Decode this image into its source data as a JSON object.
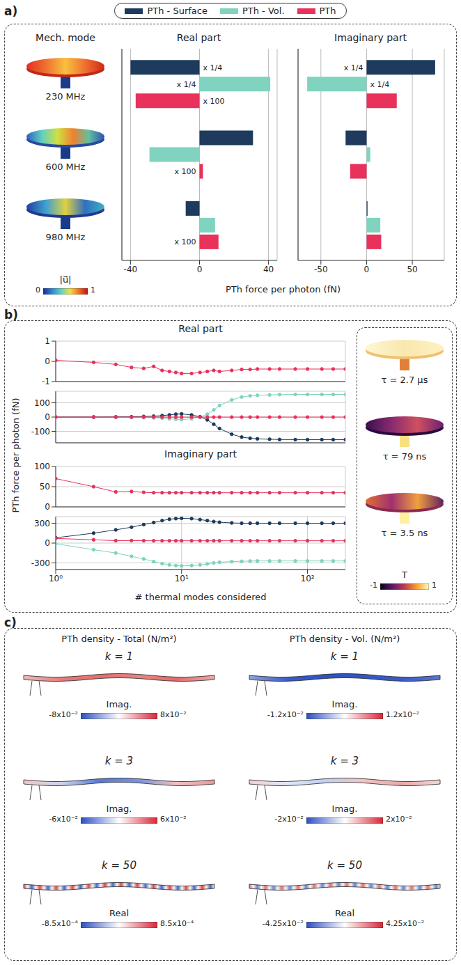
{
  "chart_data": [
    {
      "type": "bar",
      "title": "Real part",
      "orientation": "horizontal",
      "categories": [
        "230 MHz",
        "600 MHz",
        "980 MHz"
      ],
      "series": [
        {
          "name": "PTh - Surface",
          "color": "#1e3a5c",
          "values": [
            -40,
            31,
            -8
          ]
        },
        {
          "name": "PTh - Vol.",
          "color": "#7fd3bf",
          "values": [
            41,
            -29,
            9
          ]
        },
        {
          "name": "PTh",
          "color": "#e8315b",
          "values": [
            -37,
            2,
            11
          ]
        }
      ],
      "xlim": [
        -45,
        45
      ],
      "xticks": [
        -40,
        0,
        40
      ],
      "grid": true,
      "tick_labels": "x",
      "legend": "top",
      "annotations": [
        {
          "text": "x 1/4",
          "category": "230 MHz",
          "series": "PTh - Surface"
        },
        {
          "text": "x 1/4",
          "category": "230 MHz",
          "series": "PTh - Vol."
        },
        {
          "text": "x 100",
          "category": "230 MHz",
          "series": "PTh"
        },
        {
          "text": "x 100",
          "category": "600 MHz",
          "series": "PTh"
        },
        {
          "text": "x 100",
          "category": "980 MHz",
          "series": "PTh"
        }
      ]
    },
    {
      "type": "bar",
      "title": "Imaginary part",
      "orientation": "horizontal",
      "categories": [
        "230 MHz",
        "600 MHz",
        "980 MHz"
      ],
      "series": [
        {
          "name": "PTh - Surface",
          "color": "#1e3a5c",
          "values": [
            75,
            -23,
            1
          ]
        },
        {
          "name": "PTh - Vol.",
          "color": "#7fd3bf",
          "values": [
            -65,
            4,
            15
          ]
        },
        {
          "name": "PTh",
          "color": "#e8315b",
          "values": [
            33,
            -18,
            16
          ]
        }
      ],
      "xlim": [
        -75,
        85
      ],
      "xticks": [
        -50,
        0,
        50
      ],
      "grid": true,
      "tick_labels": "x",
      "annotations": [
        {
          "text": "x 1/4",
          "category": "230 MHz",
          "series": "PTh - Surface"
        },
        {
          "text": "x 1/4",
          "category": "230 MHz",
          "series": "PTh - Vol."
        }
      ]
    },
    {
      "type": "line",
      "title": "Real part",
      "x": [
        1,
        2,
        3,
        4,
        5,
        6,
        7,
        8,
        9,
        10,
        12,
        14,
        16,
        18,
        20,
        25,
        30,
        35,
        40,
        50,
        60,
        80,
        100,
        130,
        160,
        200
      ],
      "series": [
        {
          "name": "PTh",
          "color": "#e8315b",
          "values": [
            0.05,
            -0.05,
            -0.15,
            -0.3,
            -0.35,
            -0.25,
            -0.45,
            -0.5,
            -0.55,
            -0.6,
            -0.6,
            -0.55,
            -0.5,
            -0.45,
            -0.5,
            -0.45,
            -0.4,
            -0.4,
            -0.38,
            -0.38,
            -0.38,
            -0.38,
            -0.38,
            -0.38,
            -0.38,
            -0.38
          ]
        }
      ],
      "log": "x",
      "xlim": [
        1,
        200
      ],
      "xticks": [
        {
          "value": 1,
          "label": "10⁰"
        },
        {
          "value": 10,
          "label": "10¹"
        },
        {
          "value": 100,
          "label": "10²"
        }
      ],
      "ylim": [
        -1,
        1
      ],
      "yticks": [
        -1,
        0,
        1
      ],
      "grid": true,
      "tick_labels": "y",
      "marker": "circle"
    },
    {
      "type": "line",
      "x": [
        1,
        2,
        3,
        4,
        5,
        6,
        7,
        8,
        9,
        10,
        12,
        14,
        16,
        18,
        20,
        25,
        30,
        35,
        40,
        50,
        60,
        80,
        100,
        130,
        160,
        200
      ],
      "series": [
        {
          "name": "PTh - Vol.",
          "color": "#7fd3bf",
          "values": [
            0,
            0,
            -1,
            -2,
            -3,
            -5,
            -8,
            -12,
            -15,
            -18,
            -12,
            0,
            20,
            50,
            80,
            120,
            140,
            148,
            152,
            155,
            157,
            158,
            158,
            158,
            158,
            158
          ]
        },
        {
          "name": "PTh - Surface",
          "color": "#1e3a5c",
          "values": [
            0,
            0,
            1,
            2,
            4,
            6,
            10,
            15,
            20,
            22,
            15,
            2,
            -20,
            -50,
            -80,
            -120,
            -140,
            -148,
            -152,
            -155,
            -157,
            -158,
            -158,
            -158,
            -158,
            -158
          ]
        },
        {
          "name": "PTh",
          "color": "#e8315b",
          "values": [
            0.05,
            -0.05,
            -0.15,
            -0.3,
            -0.35,
            -0.25,
            -0.45,
            -0.5,
            -0.55,
            -0.6,
            -0.6,
            -0.55,
            -0.5,
            -0.45,
            -0.5,
            -0.45,
            -0.4,
            -0.4,
            -0.38,
            -0.38,
            -0.38,
            -0.38,
            -0.38,
            -0.38,
            -0.38,
            -0.38
          ]
        }
      ],
      "log": "x",
      "xlim": [
        1,
        200
      ],
      "xticks": [
        {
          "value": 1,
          "label": "10⁰"
        },
        {
          "value": 10,
          "label": "10¹"
        },
        {
          "value": 100,
          "label": "10²"
        }
      ],
      "ylim": [
        -180,
        180
      ],
      "yticks": [
        -100,
        0,
        100
      ],
      "grid": true,
      "tick_labels": "y",
      "marker": "circle"
    },
    {
      "type": "line",
      "title": "Imaginary part",
      "x": [
        1,
        2,
        3,
        4,
        5,
        6,
        7,
        8,
        9,
        10,
        12,
        14,
        16,
        18,
        20,
        25,
        30,
        35,
        40,
        50,
        60,
        80,
        100,
        130,
        160,
        200
      ],
      "series": [
        {
          "name": "PTh",
          "color": "#e8315b",
          "values": [
            70,
            50,
            37,
            38,
            36,
            35,
            35,
            35,
            35,
            35,
            35,
            35,
            35,
            35,
            35,
            35,
            35,
            35,
            35,
            35,
            35,
            35,
            35,
            35,
            35,
            35
          ]
        }
      ],
      "log": "x",
      "xlim": [
        1,
        200
      ],
      "xticks": [
        {
          "value": 1,
          "label": "10⁰"
        },
        {
          "value": 10,
          "label": "10¹"
        },
        {
          "value": 100,
          "label": "10²"
        }
      ],
      "ylim": [
        0,
        100
      ],
      "yticks": [
        0,
        50,
        100
      ],
      "grid": true,
      "tick_labels": "y",
      "marker": "circle"
    },
    {
      "type": "line",
      "x": [
        1,
        2,
        3,
        4,
        5,
        6,
        7,
        8,
        9,
        10,
        12,
        14,
        16,
        18,
        20,
        25,
        30,
        35,
        40,
        50,
        60,
        80,
        100,
        130,
        160,
        200
      ],
      "x_label": "# thermal modes considered",
      "series": [
        {
          "name": "PTh - Vol.",
          "color": "#7fd3bf",
          "values": [
            -10,
            -100,
            -150,
            -200,
            -240,
            -280,
            -310,
            -330,
            -340,
            -345,
            -340,
            -330,
            -315,
            -300,
            -290,
            -280,
            -275,
            -272,
            -270,
            -270,
            -270,
            -270,
            -270,
            -270,
            -270,
            -270
          ]
        },
        {
          "name": "PTh - Surface",
          "color": "#1e3a5c",
          "values": [
            80,
            150,
            200,
            240,
            280,
            310,
            340,
            360,
            370,
            375,
            370,
            355,
            340,
            325,
            315,
            305,
            300,
            300,
            300,
            300,
            300,
            300,
            300,
            300,
            300,
            300
          ]
        },
        {
          "name": "PTh",
          "color": "#e8315b",
          "values": [
            70,
            50,
            37,
            38,
            36,
            35,
            35,
            35,
            35,
            35,
            35,
            35,
            35,
            35,
            35,
            35,
            35,
            35,
            35,
            35,
            35,
            35,
            35,
            35,
            35,
            35
          ]
        }
      ],
      "log": "x",
      "xlim": [
        1,
        200
      ],
      "xticks": [
        {
          "value": 1,
          "label": "10⁰"
        },
        {
          "value": 10,
          "label": "10¹"
        },
        {
          "value": 100,
          "label": "10²"
        }
      ],
      "ylim": [
        -400,
        400
      ],
      "yticks": [
        -300,
        0,
        300
      ],
      "grid": true,
      "tick_labels": true,
      "marker": "circle"
    }
  ],
  "figure": {
    "panel_labels": [
      "a)",
      "b)",
      "c)"
    ],
    "panel_a": {
      "mode_label": "Mech. mode",
      "x_label": "PTh force per photon (fN)",
      "colorbar": {
        "label": "|u⃗|",
        "range": [
          0,
          1
        ],
        "ticks": [
          0,
          1
        ]
      }
    },
    "panel_b": {
      "y_label": "PTh force per photon (fN)",
      "thermal_modes": [
        "τ = 2.7 µs",
        "τ = 79 ns",
        "τ = 3.5 ns"
      ],
      "colorbar": {
        "label": "T",
        "range": [
          -1,
          1
        ],
        "ticks": [
          -1,
          1
        ]
      }
    },
    "panel_c": {
      "columns": [
        {
          "title": "PTh density - Total (N/m²)",
          "rows": [
            {
              "label": "k = 1",
              "part": "Imag.",
              "range": [
                -0.08,
                0.08
              ],
              "ticks": [
                {
                  "value": -0.08,
                  "label": "-8x10⁻²"
                },
                {
                  "value": 0.08,
                  "label": "8x10⁻²"
                }
              ]
            },
            {
              "label": "k = 3",
              "part": "Imag.",
              "range": [
                -0.06,
                0.06
              ],
              "ticks": [
                {
                  "value": -0.06,
                  "label": "-6x10⁻²"
                },
                {
                  "value": 0.06,
                  "label": "6x10⁻²"
                }
              ]
            },
            {
              "label": "k = 50",
              "part": "Real",
              "range": [
                -0.00085,
                0.00085
              ],
              "ticks": [
                {
                  "value": -0.00085,
                  "label": "-8.5x10⁻⁴"
                },
                {
                  "value": 0.00085,
                  "label": "8.5x10⁻⁴"
                }
              ]
            }
          ]
        },
        {
          "title": "PTh density - Vol. (N/m²)",
          "rows": [
            {
              "label": "k = 1",
              "part": "Imag.",
              "range": [
                -0.012,
                0.012
              ],
              "ticks": [
                {
                  "value": -0.012,
                  "label": "-1.2x10⁻²"
                },
                {
                  "value": 0.012,
                  "label": "1.2x10⁻²"
                }
              ]
            },
            {
              "label": "k = 3",
              "part": "Imag.",
              "range": [
                -0.02,
                0.02
              ],
              "ticks": [
                {
                  "value": -0.02,
                  "label": "-2x10⁻²"
                },
                {
                  "value": 0.02,
                  "label": "2x10⁻²"
                }
              ]
            },
            {
              "label": "k = 50",
              "part": "Real",
              "range": [
                -0.0425,
                0.0425
              ],
              "ticks": [
                {
                  "value": -0.0425,
                  "label": "-4.25x10⁻²"
                },
                {
                  "value": 0.0425,
                  "label": "4.25x10⁻²"
                }
              ]
            }
          ]
        }
      ]
    }
  }
}
